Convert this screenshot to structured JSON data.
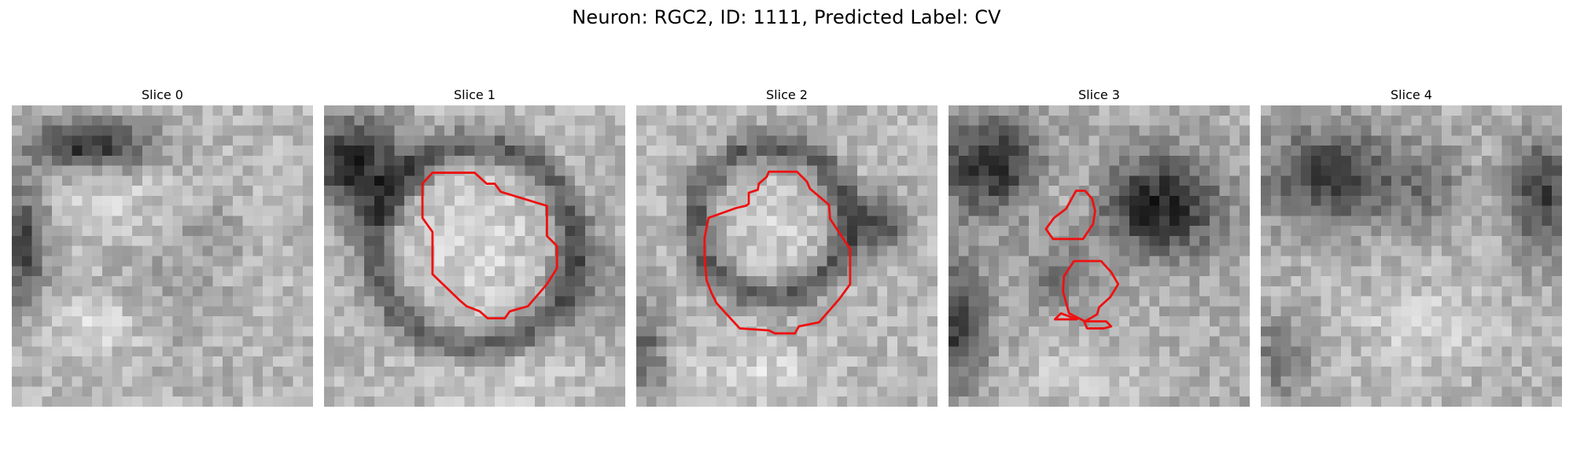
{
  "figure": {
    "title": "Neuron: RGC2, ID: 1111, Predicted Label: CV",
    "contour_color": "#ee1111",
    "panels": [
      {
        "title": "Slice 0"
      },
      {
        "title": "Slice 1"
      },
      {
        "title": "Slice 2"
      },
      {
        "title": "Slice 3"
      },
      {
        "title": "Slice 4"
      }
    ]
  }
}
